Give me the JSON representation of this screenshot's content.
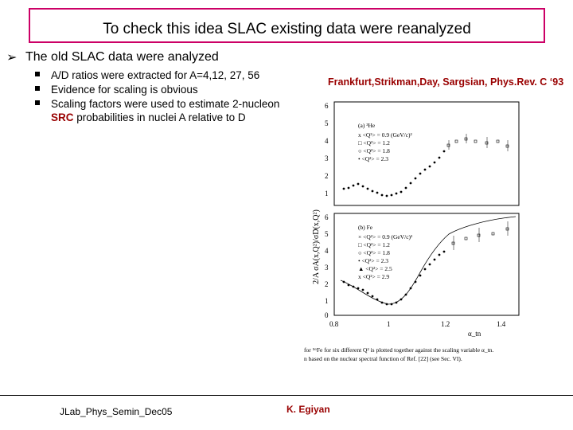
{
  "slide": {
    "title": "To check this idea SLAC existing data were reanalyzed",
    "bullet": "The old SLAC data were analyzed",
    "subbullets": [
      "A/D ratios were extracted for A=4,12, 27, 56",
      "Evidence for scaling is obvious",
      "Scaling factors were used to estimate 2-nucleon"
    ],
    "sub3_cont_highlight": "SRC",
    "sub3_cont_rest": " probabilities in nuclei A relative to D",
    "citation": "Frankfurt,Strikman,Day, Sargsian, Phys.Rev. C ‘93",
    "footer_left": "JLab_Phys_Semin_Dec05",
    "footer_right": "K. Egiyan"
  },
  "figure": {
    "ylabel": "2/A σA(x,Q²)/σD(x,Q²)",
    "xlabel": "α_tn",
    "x_ticks": [
      "0.8",
      "1",
      "1.2",
      "1.4"
    ],
    "top_y_ticks": [
      "6",
      "5",
      "4",
      "3",
      "2",
      "1"
    ],
    "bottom_y_ticks": [
      "6",
      "5",
      "4",
      "3",
      "2",
      "1",
      "0"
    ],
    "top_panel": {
      "label": "(a) ³He",
      "legend": [
        "x <Q²> = 0.9 (GeV/c)²",
        "□ <Q²> = 1.2",
        "○ <Q²> = 1.8",
        "• <Q²> = 2.3"
      ]
    },
    "bottom_panel": {
      "label": "(b) Fe",
      "legend": [
        "× <Q²> = 0.9 (GeV/c)²",
        "□ <Q²> = 1.2",
        "○ <Q²> = 1.8",
        "• <Q²> = 2.3",
        "▲ <Q²> = 2.5",
        "x <Q²> = 2.9"
      ]
    },
    "caption_line1": "for ⁵⁶Fe for six different Q² is plotted together against the scaling variable α_tn.",
    "caption_line2": "n based on the nuclear spectral function of Ref. [22] (see Sec. VI)."
  }
}
